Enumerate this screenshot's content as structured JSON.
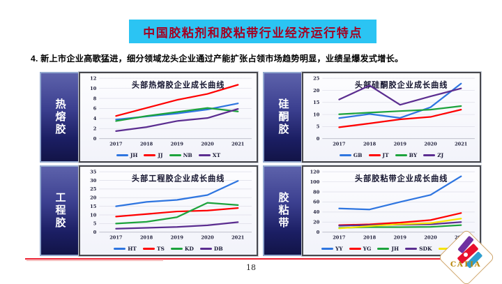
{
  "page": {
    "title": "中国胶粘剂和胶粘带行业经济运行特点",
    "subtitle": "4.  新上市企业高歌猛进，细分领域龙头企业通过产能扩张占领市场趋势明显，业绩呈爆发式增长。",
    "page_number": "18",
    "logo_text": "CATIA"
  },
  "colors": {
    "banner_bg": "#2bc4f3",
    "banner_text": "#a40021",
    "footer_line": "#ec1c2d",
    "sidebar_top": "#5d62ab",
    "sidebar_bottom": "#121447",
    "logo_gold": "#b8860b"
  },
  "chart_data": [
    {
      "type": "line",
      "side_label": "热熔胶",
      "title": "头部热熔胶企业成长曲线",
      "x": [
        "2017",
        "2018",
        "2019",
        "2020",
        "2021"
      ],
      "ylim": [
        0,
        12
      ],
      "yticks": [
        0,
        2,
        4,
        6,
        8,
        10,
        12
      ],
      "grid": true,
      "legend_position": "bottom",
      "series": [
        {
          "name": "JH",
          "color": "#2e75e0",
          "values": [
            3.8,
            4.4,
            5.0,
            5.8,
            7.0
          ]
        },
        {
          "name": "JJ",
          "color": "#fe0000",
          "values": [
            4.5,
            6.1,
            7.7,
            8.9,
            10.7
          ]
        },
        {
          "name": "NB",
          "color": "#1ca33c",
          "values": [
            3.5,
            4.5,
            5.3,
            6.1,
            5.4
          ]
        },
        {
          "name": "XT",
          "color": "#5b2d90",
          "values": [
            1.5,
            2.3,
            3.5,
            4.1,
            5.9
          ]
        }
      ]
    },
    {
      "type": "line",
      "side_label": "硅酮胶",
      "title": "头部硅酮胶企业成长曲线",
      "x": [
        "2017",
        "2018",
        "2019",
        "2020",
        "2021"
      ],
      "ylim": [
        0,
        25
      ],
      "yticks": [
        0,
        5,
        10,
        15,
        20,
        25
      ],
      "grid": true,
      "legend_position": "bottom",
      "series": [
        {
          "name": "GB",
          "color": "#2e75e0",
          "values": [
            8.5,
            10.2,
            8.6,
            13.0,
            22.8
          ]
        },
        {
          "name": "JT",
          "color": "#fe0000",
          "values": [
            4.7,
            6.3,
            8.0,
            9.0,
            12.0
          ]
        },
        {
          "name": "BY",
          "color": "#1ca33c",
          "values": [
            10.1,
            10.8,
            11.4,
            12.0,
            13.5
          ]
        },
        {
          "name": "ZJ",
          "color": "#5b2d90",
          "values": [
            16.2,
            22.0,
            14.0,
            17.5,
            20.8
          ]
        }
      ]
    },
    {
      "type": "line",
      "side_label": "工程胶",
      "title": "头部工程胶企业成长曲线",
      "x": [
        "2017",
        "2018",
        "2019",
        "2020",
        "2021"
      ],
      "ylim": [
        0,
        35
      ],
      "yticks": [
        0,
        5,
        10,
        15,
        20,
        25,
        30,
        35
      ],
      "grid": true,
      "legend_position": "bottom",
      "series": [
        {
          "name": "HT",
          "color": "#2e75e0",
          "values": [
            15.0,
            17.5,
            18.7,
            21.5,
            29.7
          ]
        },
        {
          "name": "TS",
          "color": "#fe0000",
          "values": [
            9.0,
            10.5,
            12.0,
            12.5,
            14.0
          ]
        },
        {
          "name": "KD",
          "color": "#1ca33c",
          "values": [
            5.0,
            6.0,
            8.7,
            17.0,
            15.7
          ]
        },
        {
          "name": "DB",
          "color": "#5b2d90",
          "values": [
            2.0,
            2.5,
            3.0,
            4.0,
            5.8
          ]
        }
      ]
    },
    {
      "type": "line",
      "side_label": "胶粘带",
      "title": "头部胶粘带企业成长曲线",
      "x": [
        "2017",
        "2018",
        "2019",
        "2020",
        "2021"
      ],
      "ylim": [
        0,
        120
      ],
      "yticks": [
        0,
        20,
        40,
        60,
        80,
        100,
        120
      ],
      "grid": true,
      "legend_position": "bottom",
      "series": [
        {
          "name": "YY",
          "color": "#2e75e0",
          "values": [
            47,
            45,
            60,
            74,
            111
          ]
        },
        {
          "name": "YG",
          "color": "#fe0000",
          "values": [
            14,
            15.5,
            19,
            24,
            38
          ]
        },
        {
          "name": "JH",
          "color": "#1ca33c",
          "values": [
            8.5,
            10,
            10,
            10.5,
            14
          ]
        },
        {
          "name": "SDK",
          "color": "#5b2d90",
          "values": [
            13,
            14,
            15,
            15.5,
            20
          ]
        },
        {
          "name": "HG",
          "color": "#f5e400",
          "values": [
            7.5,
            12,
            16,
            18,
            27
          ]
        }
      ]
    }
  ]
}
